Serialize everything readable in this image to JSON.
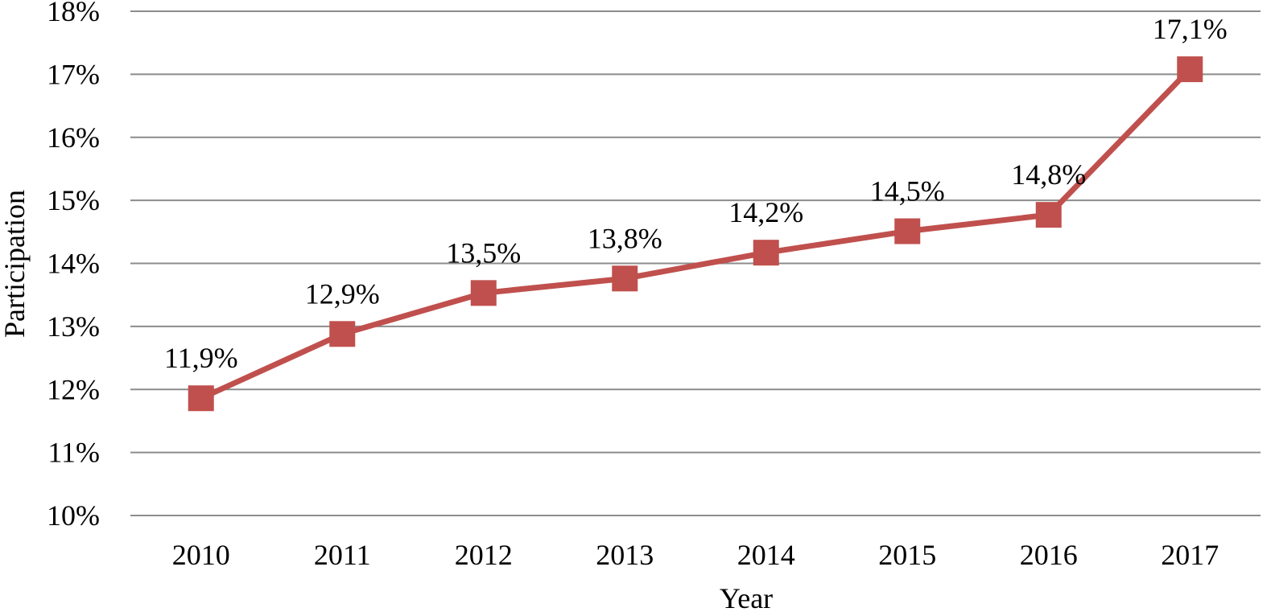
{
  "chart_data": {
    "type": "line",
    "title": "",
    "xlabel": "Year",
    "ylabel": "Participation",
    "categories": [
      "2010",
      "2011",
      "2012",
      "2013",
      "2014",
      "2015",
      "2016",
      "2017"
    ],
    "series": [
      {
        "values": [
          11.86,
          12.88,
          13.53,
          13.76,
          14.17,
          14.51,
          14.77,
          17.08
        ],
        "labels": [
          "11,9%",
          "12,9%",
          "13,5%",
          "13,8%",
          "14,2%",
          "14,5%",
          "14,8%",
          "17,1%"
        ],
        "color": "#c0504d",
        "marker": "square"
      }
    ],
    "ylim": [
      10,
      18
    ],
    "yticks": [
      10,
      11,
      12,
      13,
      14,
      15,
      16,
      17,
      18
    ],
    "ytick_labels": [
      "10%",
      "11%",
      "12%",
      "13%",
      "14%",
      "15%",
      "16%",
      "17%",
      "18%"
    ],
    "grid": true,
    "gridline_color": "#8c8c8c",
    "legend": "none"
  }
}
